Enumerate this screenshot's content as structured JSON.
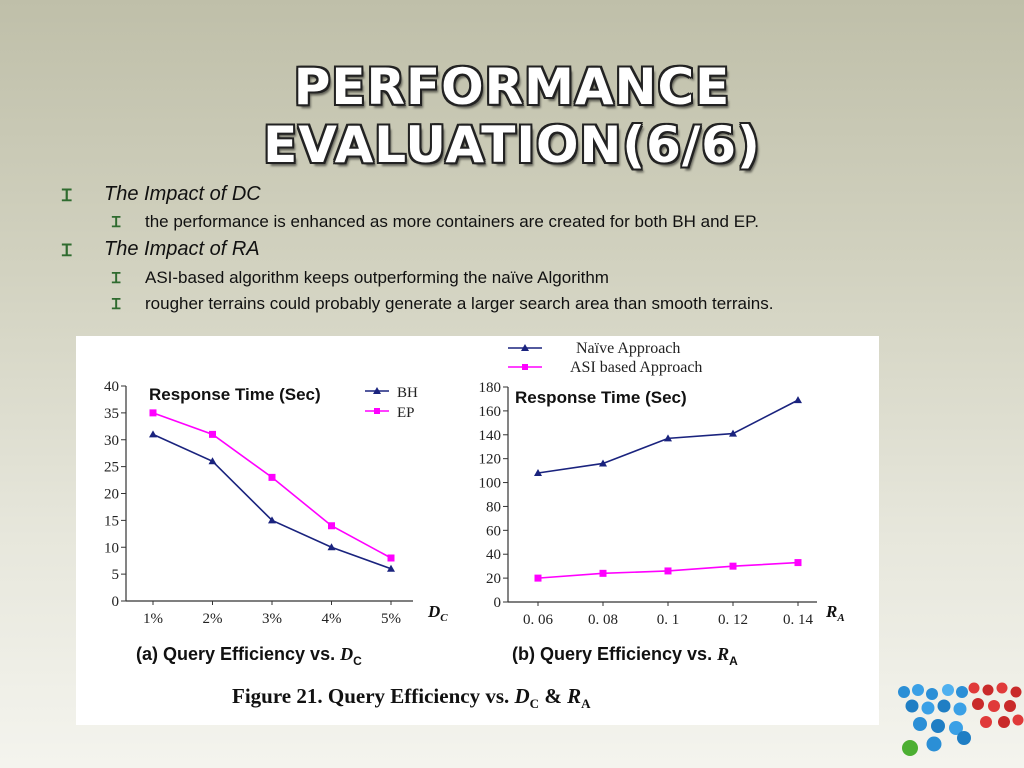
{
  "slide": {
    "title_line1": "PERFORMANCE",
    "title_line2": "EVALUATION(6/6)"
  },
  "bullets": [
    {
      "level": 1,
      "text": "The Impact of DC"
    },
    {
      "level": 2,
      "text": "the performance is enhanced as more containers are created for both BH and EP."
    },
    {
      "level": 1,
      "text": "The Impact of RA"
    },
    {
      "level": 2,
      "text": "ASI-based algorithm keeps outperforming the naïve Algorithm"
    },
    {
      "level": 2,
      "text": "rougher terrains could probably generate a larger search area than smooth terrains."
    }
  ],
  "colors": {
    "series_blue": "#1a237e",
    "series_magenta": "#ff00ff",
    "bullet_mark": "#2f6b2f",
    "title_fill": "#ffffff"
  },
  "top_legend": [
    {
      "label": "Naïve Approach",
      "color": "#1a237e",
      "marker": "triangle"
    },
    {
      "label": "ASI based Approach",
      "color": "#ff00ff",
      "marker": "square"
    }
  ],
  "figure_caption": {
    "prefix": "Figure 21. Query Efficiency vs. ",
    "d": "D",
    "d_sub": "C",
    "amp": " & ",
    "r": "R",
    "r_sub": "A"
  },
  "chart_data": [
    {
      "type": "line",
      "title": "Response Time (Sec)",
      "subcaption": "(a) Query Efficiency vs. ",
      "subcaption_var": "D",
      "subcaption_sub": "C",
      "xlabel": "D",
      "xlabel_sub": "C",
      "categories": [
        "1%",
        "2%",
        "3%",
        "4%",
        "5%"
      ],
      "ylim": [
        0,
        40
      ],
      "yticks": [
        0,
        5,
        10,
        15,
        20,
        25,
        30,
        35,
        40
      ],
      "grid": false,
      "legend_position": "top-right",
      "series": [
        {
          "name": "BH",
          "color": "#1a237e",
          "marker": "triangle",
          "values": [
            31,
            26,
            15,
            10,
            6
          ]
        },
        {
          "name": "EP",
          "color": "#ff00ff",
          "marker": "square",
          "values": [
            35,
            31,
            23,
            14,
            8
          ]
        }
      ]
    },
    {
      "type": "line",
      "title": "Response Time (Sec)",
      "subcaption": "(b) Query Efficiency vs. ",
      "subcaption_var": "R",
      "subcaption_sub": "A",
      "xlabel": "R",
      "xlabel_sub": "A",
      "categories": [
        "0. 06",
        "0. 08",
        "0. 1",
        "0. 12",
        "0. 14"
      ],
      "ylim": [
        0,
        180
      ],
      "yticks": [
        0,
        20,
        40,
        60,
        80,
        100,
        120,
        140,
        160,
        180
      ],
      "grid": false,
      "legend_position": "above chart",
      "series": [
        {
          "name": "Naïve Approach",
          "color": "#1a237e",
          "marker": "triangle",
          "values": [
            108,
            116,
            137,
            141,
            169
          ]
        },
        {
          "name": "ASI based Approach",
          "color": "#ff00ff",
          "marker": "square",
          "values": [
            20,
            24,
            26,
            30,
            33
          ]
        }
      ]
    }
  ]
}
